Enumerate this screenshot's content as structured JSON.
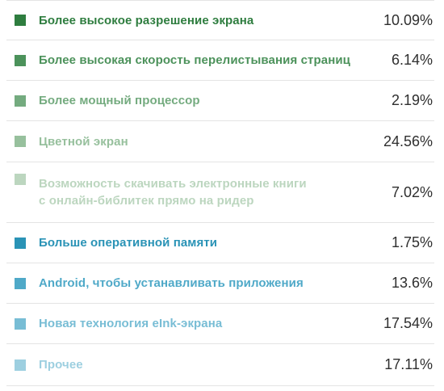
{
  "chart_data": {
    "type": "table",
    "unit": "%",
    "items": [
      {
        "label": "Более высокое разрешение экрана",
        "value": 10.09,
        "display": "10.09%",
        "color": "#2e7d3f"
      },
      {
        "label": "Более высокая скорость перелистывания страниц",
        "value": 6.14,
        "display": "6.14%",
        "color": "#4c925b"
      },
      {
        "label": "Более мощный процессор",
        "value": 2.19,
        "display": "2.19%",
        "color": "#74ab7f"
      },
      {
        "label": "Цветной экран",
        "value": 24.56,
        "display": "24.56%",
        "color": "#97c09d"
      },
      {
        "label": "Возможность скачивать электронные книги\nс онлайн-библитек прямо на ридер",
        "value": 7.02,
        "display": "7.02%",
        "color": "#bcd6bf"
      },
      {
        "label": "Больше оперативной памяти",
        "value": 1.75,
        "display": "1.75%",
        "color": "#2a93b6"
      },
      {
        "label": "Android, чтобы устанавливать приложения",
        "value": 13.6,
        "display": "13.6%",
        "color": "#4fa9c8"
      },
      {
        "label": "Новая технология eInk-экрана",
        "value": 17.54,
        "display": "17.54%",
        "color": "#78bdd5"
      },
      {
        "label": "Прочее",
        "value": 17.11,
        "display": "17.11%",
        "color": "#9dcfe0"
      }
    ]
  }
}
